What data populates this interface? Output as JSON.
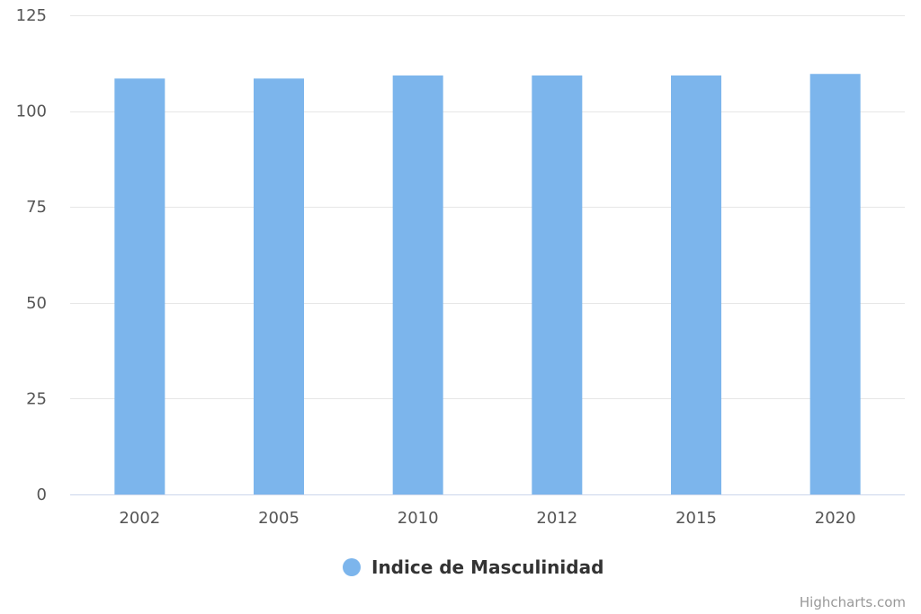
{
  "chart_data": {
    "type": "bar",
    "categories": [
      "2002",
      "2005",
      "2010",
      "2012",
      "2015",
      "2020"
    ],
    "series": [
      {
        "name": "Indice de Masculinidad",
        "values": [
          108.5,
          108.5,
          109.3,
          109.3,
          109.3,
          109.7
        ]
      }
    ],
    "ylim": [
      0,
      125
    ],
    "yticks": [
      0,
      25,
      50,
      75,
      100,
      125
    ],
    "grid": true,
    "legend_position": "bottom-center",
    "bar_color": "#7cb5ec"
  },
  "credits": {
    "label": "Highcharts.com"
  }
}
